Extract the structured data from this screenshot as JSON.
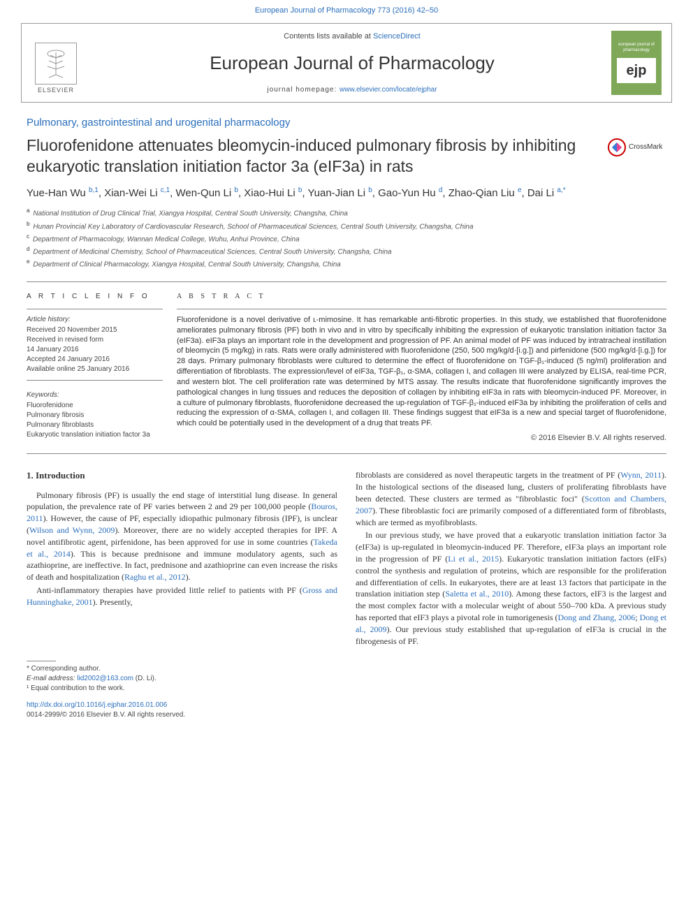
{
  "top_citation": "European Journal of Pharmacology 773 (2016) 42–50",
  "header": {
    "elsevier": "ELSEVIER",
    "contents_prefix": "Contents lists available at ",
    "contents_link": "ScienceDirect",
    "journal_name": "European Journal of Pharmacology",
    "homepage_prefix": "journal homepage: ",
    "homepage_link": "www.elsevier.com/locate/ejphar",
    "cover_top": "european journal of pharmacology",
    "cover_mid": "ejp"
  },
  "section_label": "Pulmonary, gastrointestinal and urogenital pharmacology",
  "title": "Fluorofenidone attenuates bleomycin-induced pulmonary fibrosis by inhibiting eukaryotic translation initiation factor 3a (eIF3a) in rats",
  "crossmark": "CrossMark",
  "authors_html": "Yue-Han Wu <sup>b,1</sup>, Xian-Wei Li <sup>c,1</sup>, Wen-Qun Li <sup>b</sup>, Xiao-Hui Li <sup>b</sup>, Yuan-Jian Li <sup>b</sup>, Gao-Yun Hu <sup>d</sup>, Zhao-Qian Liu <sup>e</sup>, Dai Li <sup>a,*</sup>",
  "affiliations": [
    {
      "sup": "a",
      "text": "National Institution of Drug Clinical Trial, Xiangya Hospital, Central South University, Changsha, China"
    },
    {
      "sup": "b",
      "text": "Hunan Provincial Key Laboratory of Cardiovascular Research, School of Pharmaceutical Sciences, Central South University, Changsha, China"
    },
    {
      "sup": "c",
      "text": "Department of Pharmacology, Wannan Medical College, Wuhu, Anhui Province, China"
    },
    {
      "sup": "d",
      "text": "Department of Medicinal Chemistry, School of Pharmaceutical Sciences, Central South University, Changsha, China"
    },
    {
      "sup": "e",
      "text": "Department of Clinical Pharmacology, Xiangya Hospital, Central South University, Changsha, China"
    }
  ],
  "article_info": {
    "heading": "A R T I C L E  I N F O",
    "history_label": "Article history:",
    "history": [
      "Received 20 November 2015",
      "Received in revised form",
      "14 January 2016",
      "Accepted 24 January 2016",
      "Available online 25 January 2016"
    ],
    "keywords_label": "Keywords:",
    "keywords": [
      "Fluorofenidone",
      "Pulmonary fibrosis",
      "Pulmonary fibroblasts",
      "Eukaryotic translation initiation factor 3a"
    ]
  },
  "abstract": {
    "heading": "A B S T R A C T",
    "text": "Fluorofenidone is a novel derivative of ʟ-mimosine. It has remarkable anti-fibrotic properties. In this study, we established that fluorofenidone ameliorates pulmonary fibrosis (PF) both in vivo and in vitro by specifically inhibiting the expression of eukaryotic translation initiation factor 3a (eIF3a). eIF3a plays an important role in the development and progression of PF. An animal model of PF was induced by intratracheal instillation of bleomycin (5 mg/kg) in rats. Rats were orally administered with fluorofenidone (250, 500 mg/kg/d·[i.g.]) and pirfenidone (500 mg/kg/d·[i.g.]) for 28 days. Primary pulmonary fibroblasts were cultured to determine the effect of fluorofenidone on TGF-β₁-induced (5 ng/ml) proliferation and differentiation of fibroblasts. The expression/level of eIF3a, TGF-β₁, α-SMA, collagen I, and collagen III were analyzed by ELISA, real-time PCR, and western blot. The cell proliferation rate was determined by MTS assay. The results indicate that fluorofenidone significantly improves the pathological changes in lung tissues and reduces the deposition of collagen by inhibiting eIF3a in rats with bleomycin-induced PF. Moreover, in a culture of pulmonary fibroblasts, fluorofenidone decreased the up-regulation of TGF-β₁-induced eIF3a by inhibiting the proliferation of cells and reducing the expression of α-SMA, collagen I, and collagen III. These findings suggest that eIF3a is a new and special target of fluorofenidone, which could be potentially used in the development of a drug that treats PF.",
    "copyright": "© 2016 Elsevier B.V. All rights reserved."
  },
  "intro": {
    "heading": "1. Introduction",
    "p1a": "Pulmonary fibrosis (PF) is usually the end stage of interstitial lung disease. In general population, the prevalence rate of PF varies between 2 and 29 per 100,000 people (",
    "p1b": "). However, the cause of PF, especially idiopathic pulmonary fibrosis (IPF), is unclear (",
    "p1c": "). Moreover, there are no widely accepted therapies for IPF. A novel antifibrotic agent, pirfenidone, has been approved for use in some countries (",
    "p1d": "). This is because prednisone and immune modulatory agents, such as azathioprine, are ineffective. In fact, prednisone and azathioprine can even increase the risks of death and hospitalization (",
    "p1e": ").",
    "p2a": "Anti-inflammatory therapies have provided little relief to patients with PF (",
    "p2b": "). Presently,",
    "p3a": "fibroblasts are considered as novel therapeutic targets in the treatment of PF (",
    "p3b": "). In the histological sections of the diseased lung, clusters of proliferating fibroblasts have been detected. These clusters are termed as \"fibroblastic foci\" (",
    "p3c": "). These fibroblastic foci are primarily composed of a differentiated form of fibroblasts, which are termed as myofibroblasts.",
    "p4a": "In our previous study, we have proved that a eukaryotic translation initiation factor 3a (eIF3a) is up-regulated in bleomycin-induced PF. Therefore, eIF3a plays an important role in the progression of PF (",
    "p4b": "). Eukaryotic translation initiation factors (eIFs) control the synthesis and regulation of proteins, which are responsible for the proliferation and differentiation of cells. In eukaryotes, there are at least 13 factors that participate in the translation initiation step (",
    "p4c": "). Among these factors, eIF3 is the largest and the most complex factor with a molecular weight of about 550–700 kDa. A previous study has reported that eIF3 plays a pivotal role in tumorigenesis (",
    "p4d": "; ",
    "p4e": "). Our previous study established that up-regulation of eIF3a is crucial in the fibrogenesis of PF.",
    "refs": {
      "bouros": "Bouros, 2011",
      "wilson": "Wilson and Wynn, 2009",
      "takeda": "Takeda et al., 2014",
      "raghu": "Raghu et al., 2012",
      "gross": "Gross and Hunninghake, 2001",
      "wynn": "Wynn, 2011",
      "scotton": "Scotton and Chambers, 2007",
      "li2015": "Li et al., 2015",
      "saletta": "Saletta et al., 2010",
      "dong2006": "Dong and Zhang, 2006",
      "dong2009": "Dong et al., 2009"
    }
  },
  "footnotes": {
    "corr_label": "* Corresponding author.",
    "email_label": "E-mail address: ",
    "email": "lid2002@163.com",
    "email_suffix": " (D. Li).",
    "equal": "¹ Equal contribution to the work."
  },
  "doi": {
    "link": "http://dx.doi.org/10.1016/j.ejphar.2016.01.006",
    "issn": "0014-2999/© 2016 Elsevier B.V. All rights reserved."
  },
  "colors": {
    "link": "#2a6ebb",
    "cover_bg": "#7fa858",
    "text": "#333333",
    "rule": "#888888"
  }
}
